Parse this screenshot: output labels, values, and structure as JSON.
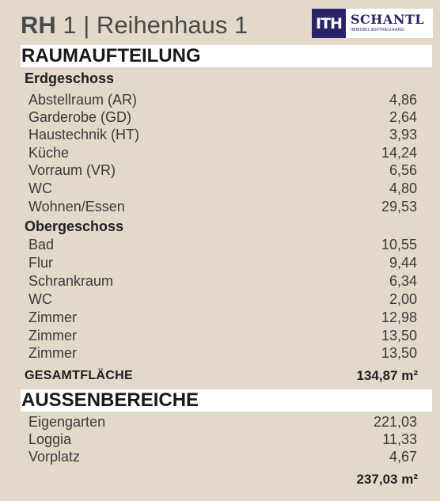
{
  "header": {
    "title_bold": "RH",
    "title_rest": "1 | Reihenhaus 1",
    "logo": {
      "mark": "ITH",
      "brand": "SCHANTL",
      "sub": "IMMOBILIENTREUHAND",
      "color": "#2a2466"
    }
  },
  "raumaufteilung": {
    "heading": "RAUMAUFTEILUNG",
    "erdgeschoss": {
      "label": "Erdgeschoss",
      "rows": [
        {
          "name": "Abstellraum (AR)",
          "value": "4,86"
        },
        {
          "name": "Garderobe (GD)",
          "value": "2,64"
        },
        {
          "name": "Haustechnik (HT)",
          "value": "3,93"
        },
        {
          "name": "Küche",
          "value": "14,24"
        },
        {
          "name": "Vorraum (VR)",
          "value": "6,56"
        },
        {
          "name": "WC",
          "value": "4,80"
        },
        {
          "name": "Wohnen/Essen",
          "value": "29,53"
        }
      ]
    },
    "obergeschoss": {
      "label": "Obergeschoss",
      "rows": [
        {
          "name": "Bad",
          "value": "10,55"
        },
        {
          "name": "Flur",
          "value": "9,44"
        },
        {
          "name": "Schrankraum",
          "value": "6,34"
        },
        {
          "name": "WC",
          "value": "2,00"
        },
        {
          "name": "Zimmer",
          "value": "12,98"
        },
        {
          "name": "Zimmer",
          "value": "13,50"
        },
        {
          "name": "Zimmer",
          "value": "13,50"
        }
      ]
    },
    "total_label": "GESAMTFLÄCHE",
    "total_value": "134,87 m²"
  },
  "aussenbereiche": {
    "heading": "AUSSENBEREICHE",
    "rows": [
      {
        "name": "Eigengarten",
        "value": "221,03"
      },
      {
        "name": "Loggia",
        "value": "11,33"
      },
      {
        "name": "Vorplatz",
        "value": "4,67"
      }
    ],
    "total_value": "237,03 m²"
  }
}
